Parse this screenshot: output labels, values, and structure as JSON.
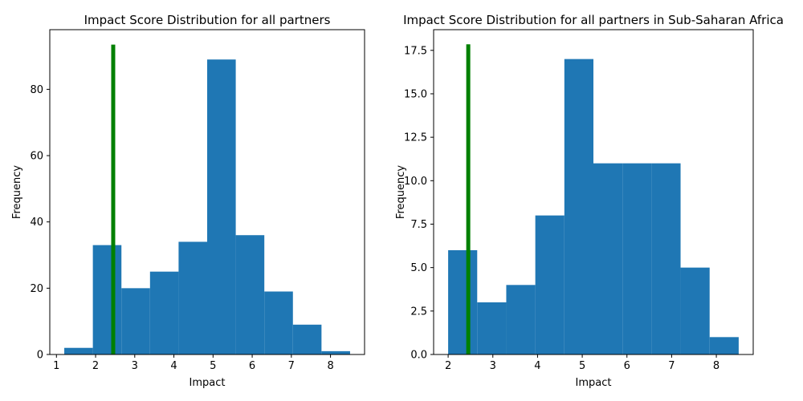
{
  "chart_data": [
    {
      "type": "bar",
      "title": "Impact Score Distribution for all partners",
      "xlabel": "Impact",
      "ylabel": "Frequency",
      "xlim": [
        0.83,
        8.87
      ],
      "ylim": [
        0,
        98
      ],
      "x_ticks": [
        1,
        2,
        3,
        4,
        5,
        6,
        7,
        8
      ],
      "y_ticks": [
        0,
        20,
        40,
        60,
        80
      ],
      "bin_edges": [
        1.2,
        1.93,
        2.66,
        3.39,
        4.12,
        4.85,
        5.58,
        6.31,
        7.04,
        7.77,
        8.5
      ],
      "values": [
        2,
        33,
        20,
        25,
        34,
        89,
        36,
        19,
        9,
        1
      ],
      "marker_line": {
        "x": 2.45,
        "y_top": 93.5,
        "color": "#008000"
      },
      "bar_color": "#1f77b4"
    },
    {
      "type": "bar",
      "title": "Impact Score Distribution for all partners in Sub-Saharan Africa",
      "xlabel": "Impact",
      "ylabel": "Frequency",
      "xlim": [
        1.675,
        8.825
      ],
      "ylim": [
        0,
        18.69
      ],
      "x_ticks": [
        2,
        3,
        4,
        5,
        6,
        7,
        8
      ],
      "y_ticks": [
        "0.0",
        "2.5",
        "5.0",
        "7.5",
        "10.0",
        "12.5",
        "15.0",
        "17.5"
      ],
      "bin_edges": [
        2.0,
        2.65,
        3.3,
        3.95,
        4.6,
        5.25,
        5.9,
        6.55,
        7.2,
        7.85,
        8.5
      ],
      "values": [
        6,
        3,
        4,
        8,
        17,
        11,
        11,
        11,
        5,
        1
      ],
      "marker_line": {
        "x": 2.45,
        "y_top": 17.85,
        "color": "#008000"
      },
      "bar_color": "#1f77b4"
    }
  ]
}
